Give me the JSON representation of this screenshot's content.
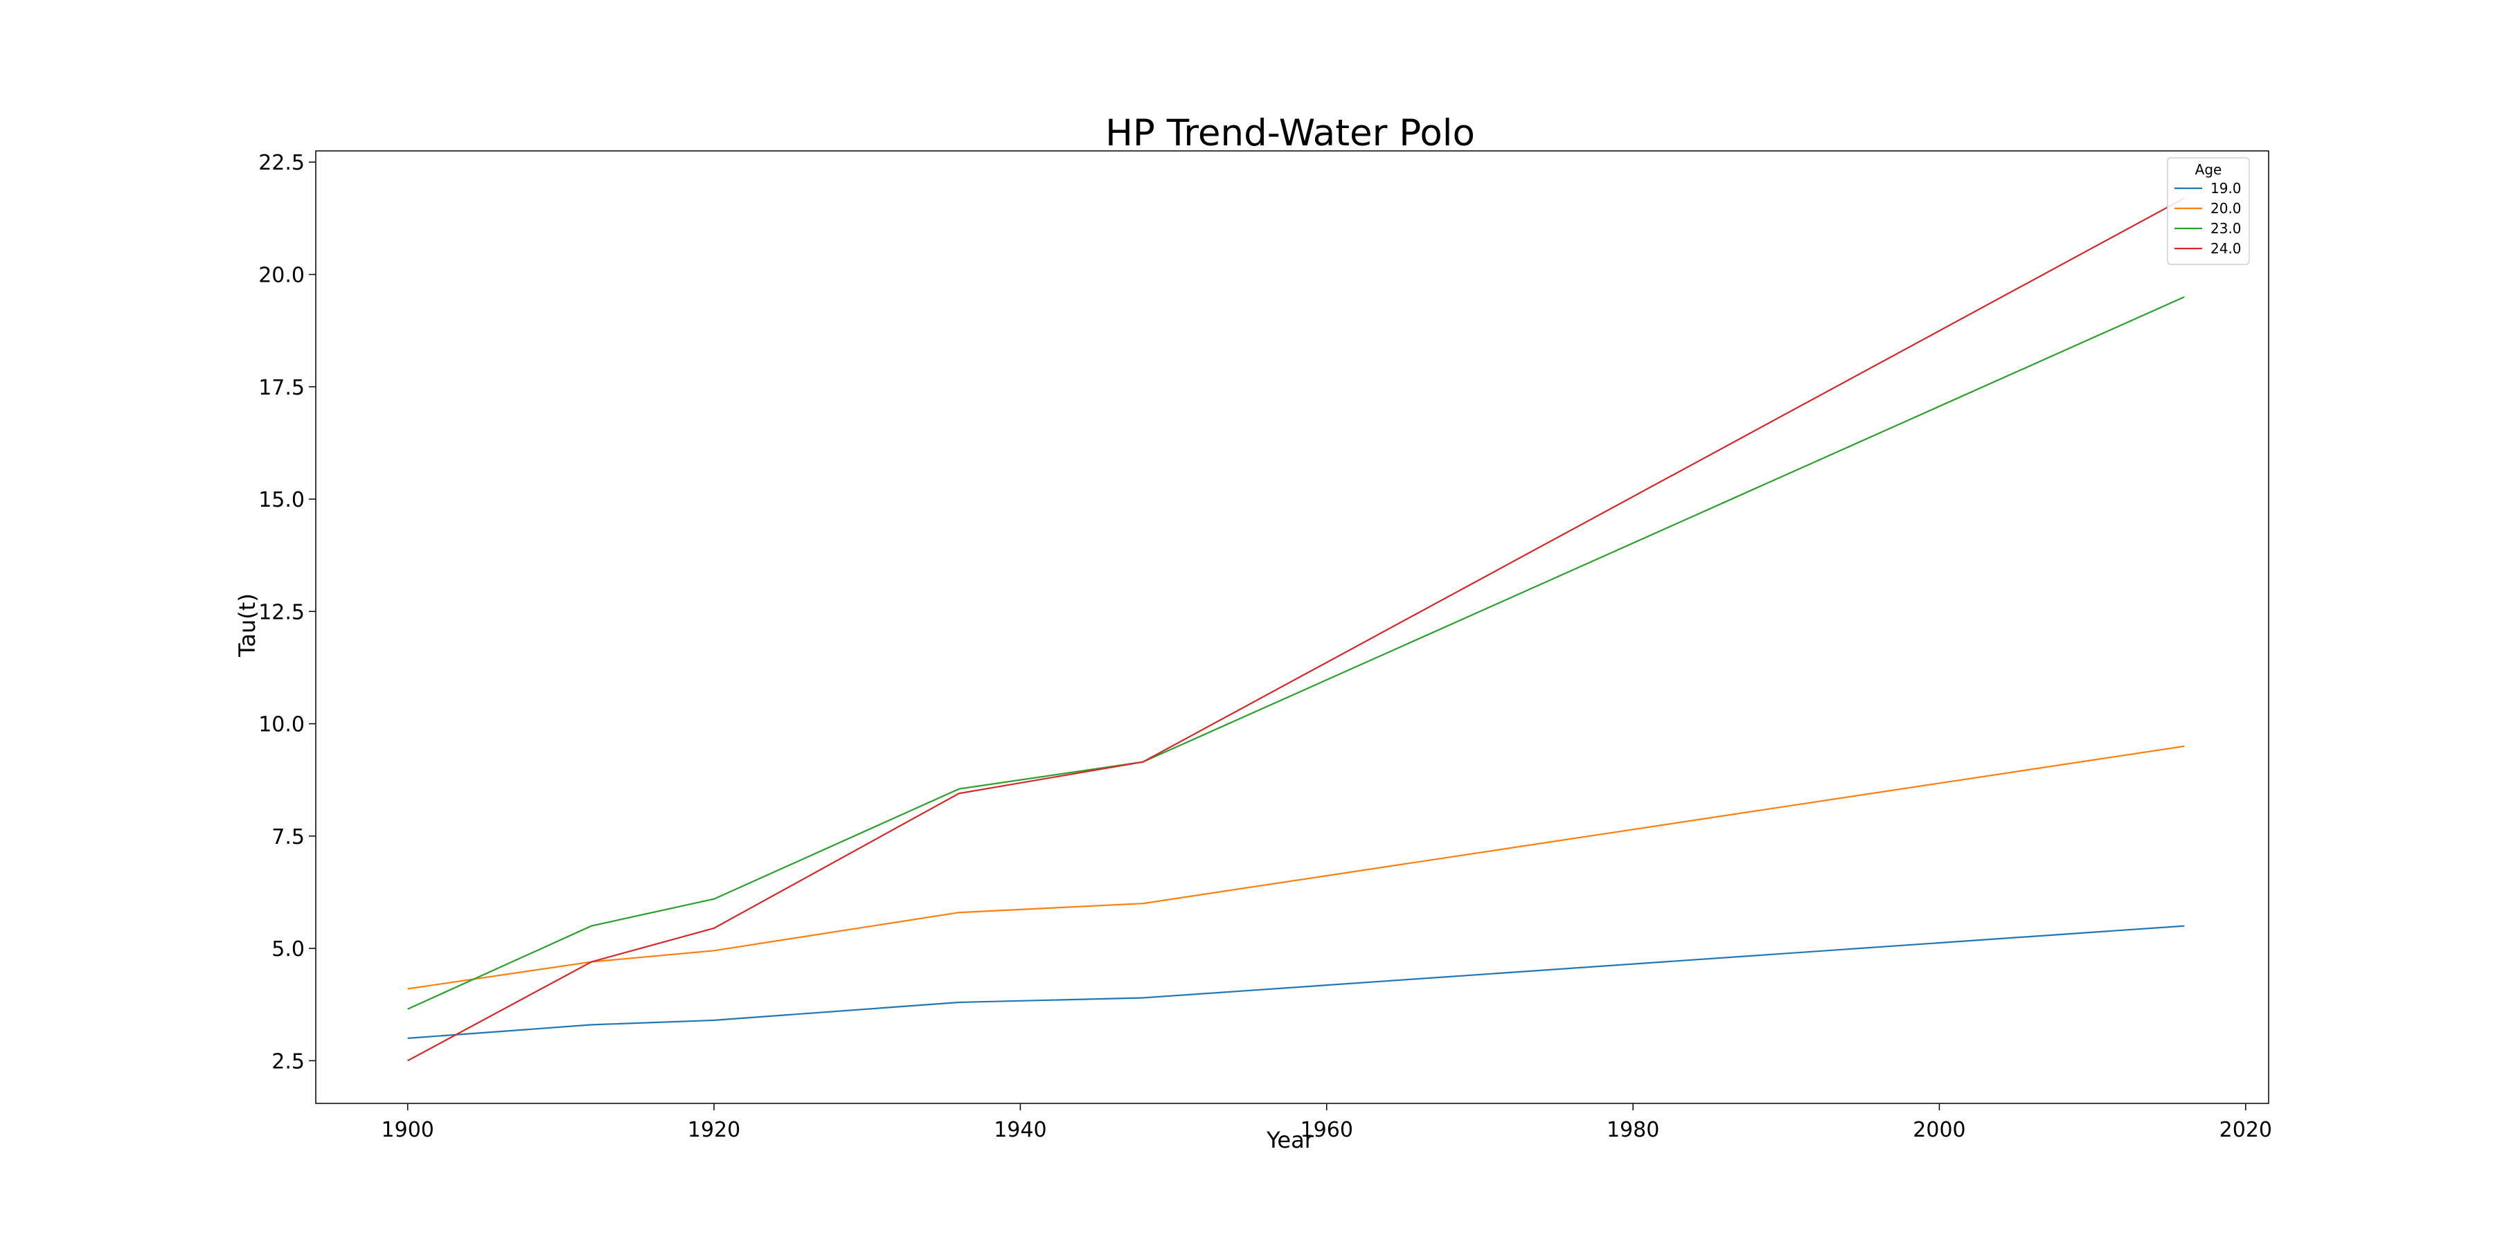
{
  "chart_data": {
    "type": "line",
    "title": "HP Trend-Water Polo",
    "xlabel": "Year",
    "ylabel": "Tau(t)",
    "xlim": [
      1894,
      2021.5
    ],
    "ylim": [
      1.55,
      22.75
    ],
    "x_ticks": [
      {
        "value": 1900,
        "label": "1900"
      },
      {
        "value": 1920,
        "label": "1920"
      },
      {
        "value": 1940,
        "label": "1940"
      },
      {
        "value": 1960,
        "label": "1960"
      },
      {
        "value": 1980,
        "label": "1980"
      },
      {
        "value": 2000,
        "label": "2000"
      },
      {
        "value": 2020,
        "label": "2020"
      }
    ],
    "y_ticks": [
      {
        "value": 2.5,
        "label": "2.5"
      },
      {
        "value": 5.0,
        "label": "5.0"
      },
      {
        "value": 7.5,
        "label": "7.5"
      },
      {
        "value": 10.0,
        "label": "10.0"
      },
      {
        "value": 12.5,
        "label": "12.5"
      },
      {
        "value": 15.0,
        "label": "15.0"
      },
      {
        "value": 17.5,
        "label": "17.5"
      },
      {
        "value": 20.0,
        "label": "20.0"
      },
      {
        "value": 22.5,
        "label": "22.5"
      }
    ],
    "grid": false,
    "legend": {
      "title": "Age",
      "placement": "top-right"
    },
    "x": [
      1900,
      1912,
      1920,
      1936,
      1948,
      2016
    ],
    "series": [
      {
        "name": "19.0",
        "color": "#1f77b4",
        "values": [
          3.0,
          3.3,
          3.4,
          3.8,
          3.9,
          5.5
        ]
      },
      {
        "name": "20.0",
        "color": "#ff7f0e",
        "values": [
          4.1,
          4.7,
          4.95,
          5.8,
          6.0,
          9.5
        ]
      },
      {
        "name": "23.0",
        "color": "#2ca02c",
        "values": [
          3.65,
          5.5,
          6.1,
          8.55,
          9.15,
          19.5
        ]
      },
      {
        "name": "24.0",
        "color": "#d62728",
        "values": [
          2.5,
          4.7,
          5.45,
          8.45,
          9.15,
          21.7
        ]
      }
    ]
  }
}
